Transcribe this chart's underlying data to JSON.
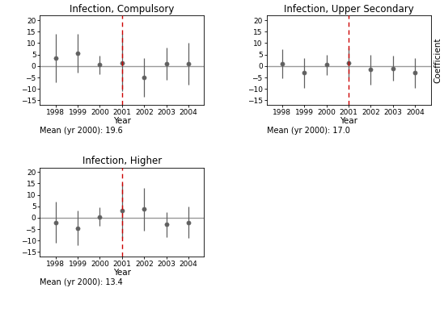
{
  "panels": [
    {
      "title": "Infection, Compulsory",
      "mean_label": "Mean (yr 2000): 19.6",
      "years": [
        1998,
        1999,
        2000,
        2002,
        2003,
        2004
      ],
      "coef": [
        3.5,
        5.5,
        0.5,
        -5.0,
        1.0,
        1.0
      ],
      "ci_lo": [
        -7.0,
        -3.0,
        -3.5,
        -13.5,
        -6.0,
        -8.0
      ],
      "ci_hi": [
        14.0,
        14.0,
        4.5,
        3.5,
        8.0,
        10.0
      ],
      "ref_year": 2001,
      "ref_coef": 1.5,
      "ref_ci_lo": -11.0,
      "ref_ci_hi": 14.0,
      "show_ylabel": false,
      "ylabel_side": "left"
    },
    {
      "title": "Infection, Upper Secondary",
      "mean_label": "Mean (yr 2000): 17.0",
      "years": [
        1998,
        1999,
        2000,
        2002,
        2003,
        2004
      ],
      "coef": [
        1.0,
        -3.0,
        0.5,
        -1.5,
        -1.0,
        -3.0
      ],
      "ci_lo": [
        -5.5,
        -9.5,
        -4.0,
        -8.0,
        -6.5,
        -9.5
      ],
      "ci_hi": [
        7.5,
        3.5,
        5.0,
        5.0,
        4.5,
        3.5
      ],
      "ref_year": 2001,
      "ref_coef": 1.5,
      "ref_ci_lo": -5.0,
      "ref_ci_hi": 8.0,
      "show_ylabel": true,
      "ylabel_side": "right"
    },
    {
      "title": "Infection, Higher",
      "mean_label": "Mean (yr 2000): 13.4",
      "years": [
        1998,
        1999,
        2000,
        2002,
        2003,
        2004
      ],
      "coef": [
        -2.0,
        -4.5,
        0.5,
        4.0,
        -3.0,
        -2.0
      ],
      "ci_lo": [
        -11.0,
        -12.0,
        -3.5,
        -5.5,
        -8.5,
        -9.0
      ],
      "ci_hi": [
        7.0,
        3.0,
        4.5,
        13.0,
        2.5,
        5.0
      ],
      "ref_year": 2001,
      "ref_coef": 3.0,
      "ref_ci_lo": -9.0,
      "ref_ci_hi": 15.0,
      "show_ylabel": false,
      "ylabel_side": "left"
    }
  ],
  "ylim": [
    -17,
    22
  ],
  "yticks": [
    -15,
    -10,
    -5,
    0,
    5,
    10,
    15,
    20
  ],
  "hline_y": 0,
  "ref_vline_x": 2001,
  "dot_color": "#606060",
  "line_color": "#606060",
  "hline_color": "#999999",
  "vline_color": "#cc0000",
  "bg_color": "white",
  "font_size": 7.5,
  "title_font_size": 8.5
}
